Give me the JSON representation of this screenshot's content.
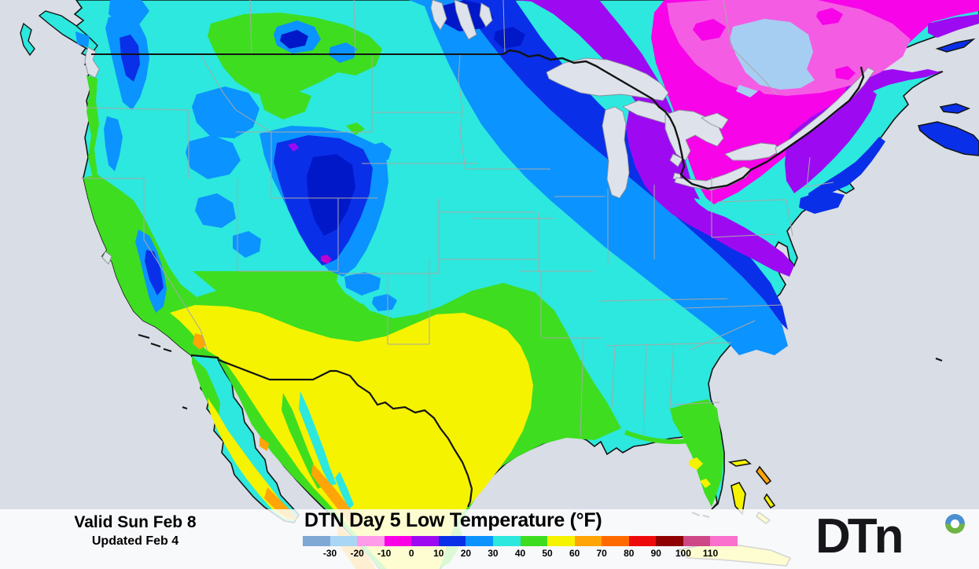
{
  "footer": {
    "valid_line": "Valid Sun Feb 8",
    "updated_line": "Updated Feb 4",
    "map_title": "DTN Day 5 Low Temperature (°F)",
    "logo_text": "DTn"
  },
  "legend": {
    "unit": "°F",
    "tick_labels": [
      "-30",
      "-20",
      "-10",
      "0",
      "10",
      "20",
      "30",
      "40",
      "50",
      "60",
      "70",
      "80",
      "90",
      "100",
      "110"
    ],
    "segment_colors": [
      "#7FA8D4",
      "#A9D6F4",
      "#FF9BE8",
      "#FA00E6",
      "#9D0AF2",
      "#0A2FE8",
      "#0B93FF",
      "#2CE8DE",
      "#3EDD20",
      "#F5F300",
      "#FFA508",
      "#FF6A00",
      "#EE0A0A",
      "#8F0000",
      "#CE4786",
      "#F970CD"
    ]
  },
  "map": {
    "description": "Filled low-temperature contour map of North America",
    "ocean_color": "#D8DDE6",
    "lake_color": "#DEE3EB",
    "band_colors": {
      "cyan": "#2CE8DE",
      "green": "#3EDD20",
      "yellow": "#F5F300",
      "orange": "#FFA508",
      "dodger_blue": "#0B93FF",
      "royal_blue": "#0A2FE8",
      "navy": "#0018C8",
      "purple": "#9D0AF2",
      "magenta": "#F704E8",
      "pink": "#F55CE4",
      "light_blue": "#A6CEF2",
      "violet": "#BB00D0"
    },
    "border_colors": {
      "coast": "#141414",
      "state": "#A8A8A8"
    }
  }
}
